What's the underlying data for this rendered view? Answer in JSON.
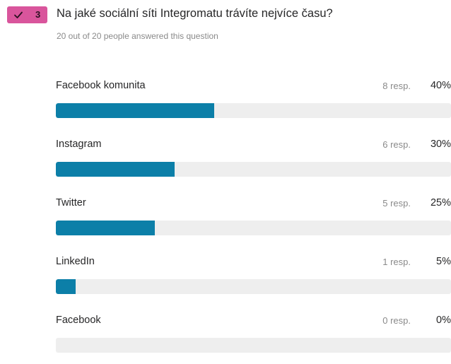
{
  "question": {
    "badge_number": "3",
    "title": "Na jaké sociální síti Integromatu trávíte nejvíce času?",
    "subtitle": "20 out of 20 people answered this question"
  },
  "colors": {
    "badge": "#d9559c",
    "bar_fill": "#0c7fa8",
    "bar_track": "#eeeeee"
  },
  "icons": {
    "badge_icon": "check-icon"
  },
  "options": [
    {
      "label": "Facebook komunita",
      "responses": "8 resp.",
      "percent": "40%",
      "value": 40
    },
    {
      "label": "Instagram",
      "responses": "6 resp.",
      "percent": "30%",
      "value": 30
    },
    {
      "label": "Twitter",
      "responses": "5 resp.",
      "percent": "25%",
      "value": 25
    },
    {
      "label": "LinkedIn",
      "responses": "1 resp.",
      "percent": "5%",
      "value": 5
    },
    {
      "label": "Facebook",
      "responses": "0 resp.",
      "percent": "0%",
      "value": 0
    }
  ]
}
